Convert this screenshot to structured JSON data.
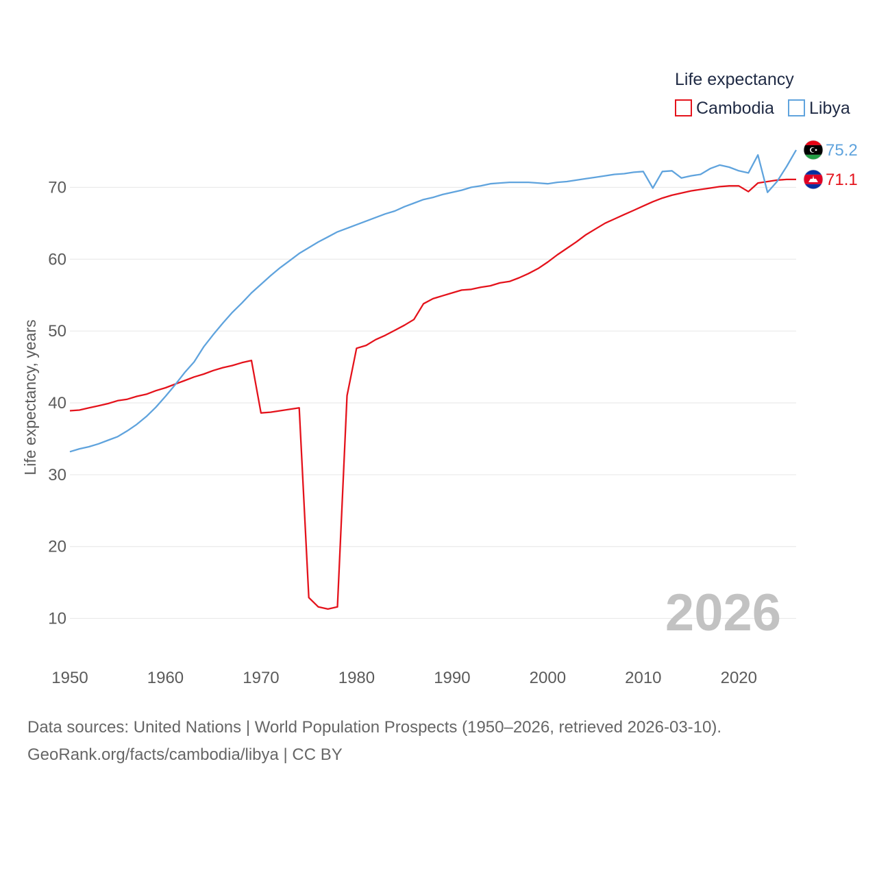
{
  "chart_data": {
    "type": "line",
    "legend_title": "Life expectancy",
    "legend_position": "top-right",
    "ylabel": "Life expectancy, years",
    "xlabel": "",
    "xlim": [
      1950,
      2026
    ],
    "ylim": [
      5,
      77
    ],
    "x_ticks": [
      1950,
      1960,
      1970,
      1980,
      1990,
      2000,
      2010,
      2020
    ],
    "y_ticks": [
      10,
      20,
      30,
      40,
      50,
      60,
      70
    ],
    "grid": "horizontal",
    "year_stamp": "2026",
    "x": [
      1950,
      1951,
      1952,
      1953,
      1954,
      1955,
      1956,
      1957,
      1958,
      1959,
      1960,
      1961,
      1962,
      1963,
      1964,
      1965,
      1966,
      1967,
      1968,
      1969,
      1970,
      1971,
      1972,
      1973,
      1974,
      1975,
      1976,
      1977,
      1978,
      1979,
      1980,
      1981,
      1982,
      1983,
      1984,
      1985,
      1986,
      1987,
      1988,
      1989,
      1990,
      1991,
      1992,
      1993,
      1994,
      1995,
      1996,
      1997,
      1998,
      1999,
      2000,
      2001,
      2002,
      2003,
      2004,
      2005,
      2006,
      2007,
      2008,
      2009,
      2010,
      2011,
      2012,
      2013,
      2014,
      2015,
      2016,
      2017,
      2018,
      2019,
      2020,
      2021,
      2022,
      2023,
      2024,
      2025,
      2026
    ],
    "series": [
      {
        "name": "Cambodia",
        "color": "#e4121b",
        "end_label": "71.1",
        "flag": "cambodia-flag",
        "values": [
          38.9,
          39.0,
          39.3,
          39.6,
          39.9,
          40.3,
          40.5,
          40.9,
          41.2,
          41.7,
          42.1,
          42.6,
          43.1,
          43.6,
          44.0,
          44.5,
          44.9,
          45.2,
          45.6,
          45.9,
          38.6,
          38.7,
          38.9,
          39.1,
          39.3,
          12.9,
          11.6,
          11.3,
          11.6,
          41.0,
          47.6,
          48.0,
          48.8,
          49.4,
          50.1,
          50.8,
          51.6,
          53.8,
          54.5,
          54.9,
          55.3,
          55.7,
          55.8,
          56.1,
          56.3,
          56.7,
          56.9,
          57.4,
          58.0,
          58.7,
          59.6,
          60.6,
          61.5,
          62.4,
          63.4,
          64.2,
          65.0,
          65.6,
          66.2,
          66.8,
          67.4,
          68.0,
          68.5,
          68.9,
          69.2,
          69.5,
          69.7,
          69.9,
          70.1,
          70.2,
          70.2,
          69.4,
          70.6,
          70.8,
          71.0,
          71.1,
          71.1
        ]
      },
      {
        "name": "Libya",
        "color": "#5fa3dd",
        "end_label": "75.2",
        "flag": "libya-flag",
        "values": [
          33.2,
          33.6,
          33.9,
          34.3,
          34.8,
          35.3,
          36.1,
          37.0,
          38.1,
          39.4,
          40.9,
          42.5,
          44.2,
          45.7,
          47.8,
          49.5,
          51.1,
          52.6,
          53.9,
          55.3,
          56.5,
          57.7,
          58.8,
          59.8,
          60.8,
          61.6,
          62.4,
          63.1,
          63.8,
          64.3,
          64.8,
          65.3,
          65.8,
          66.3,
          66.7,
          67.3,
          67.8,
          68.3,
          68.6,
          69.0,
          69.3,
          69.6,
          70.0,
          70.2,
          70.5,
          70.6,
          70.7,
          70.7,
          70.7,
          70.6,
          70.5,
          70.7,
          70.8,
          71.0,
          71.2,
          71.4,
          71.6,
          71.8,
          71.9,
          72.1,
          72.2,
          69.9,
          72.2,
          72.3,
          71.3,
          71.6,
          71.8,
          72.6,
          73.1,
          72.8,
          72.3,
          72.0,
          74.5,
          69.3,
          70.8,
          72.9,
          75.2
        ]
      }
    ]
  },
  "footer": {
    "sources": "Data sources: United Nations | World Population Prospects (1950–2026, retrieved 2026-03-10).",
    "credit": "GeoRank.org/facts/cambodia/libya | CC BY"
  }
}
